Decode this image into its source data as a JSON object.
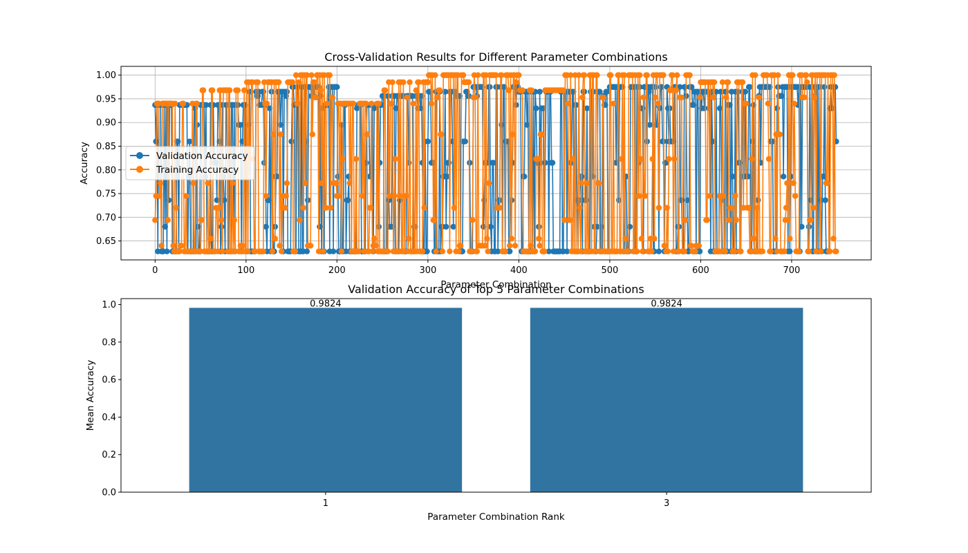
{
  "chart_data": [
    {
      "type": "line",
      "title": "Cross-Validation Results for Different Parameter Combinations",
      "xlabel": "Parameter Combination",
      "ylabel": "Accuracy",
      "xlim": [
        -37.5,
        787.5
      ],
      "ylim": [
        0.61,
        1.0185
      ],
      "xticks": [
        0,
        100,
        200,
        300,
        400,
        500,
        600,
        700
      ],
      "yticks": [
        0.65,
        0.7,
        0.75,
        0.8,
        0.85,
        0.9,
        0.95,
        1.0
      ],
      "grid": true,
      "legend_position": "center-left",
      "n_points": 750,
      "series": [
        {
          "name": "Validation Accuracy",
          "color": "#1f77b4",
          "marker": "circle",
          "levels": [
            0.628,
            0.68,
            0.736,
            0.786,
            0.815,
            0.86,
            0.895,
            0.93,
            0.937,
            0.956,
            0.965,
            0.975
          ],
          "block_ranges": [
            [
              0.628,
              0.94
            ],
            [
              0.628,
              0.955
            ],
            [
              0.628,
              0.968
            ],
            [
              0.628,
              0.975
            ],
            [
              0.628,
              0.942
            ],
            [
              0.628,
              0.96
            ],
            [
              0.628,
              0.972
            ],
            [
              0.628,
              0.975
            ],
            [
              0.628,
              0.965
            ],
            [
              0.628,
              0.972
            ],
            [
              0.628,
              0.975
            ],
            [
              0.628,
              0.975
            ],
            [
              0.628,
              0.968
            ],
            [
              0.628,
              0.975
            ],
            [
              0.628,
              0.975
            ]
          ]
        },
        {
          "name": "Training Accuracy",
          "color": "#ff7f0e",
          "marker": "circle",
          "levels": [
            0.628,
            0.64,
            0.655,
            0.694,
            0.72,
            0.745,
            0.772,
            0.823,
            0.875,
            0.94,
            0.953,
            0.968,
            0.985,
            1.0
          ],
          "block_ranges": [
            [
              0.628,
              0.94
            ],
            [
              0.628,
              0.976
            ],
            [
              0.628,
              0.99
            ],
            [
              0.628,
              1.0
            ],
            [
              0.628,
              0.945
            ],
            [
              0.628,
              0.99
            ],
            [
              0.628,
              1.0
            ],
            [
              0.628,
              1.0
            ],
            [
              0.628,
              0.975
            ],
            [
              0.628,
              1.0
            ],
            [
              0.628,
              1.0
            ],
            [
              0.628,
              1.0
            ],
            [
              0.628,
              0.985
            ],
            [
              0.628,
              1.0
            ],
            [
              0.628,
              1.0
            ]
          ]
        }
      ]
    },
    {
      "type": "bar",
      "title": "Validation Accuracy of Top 5 Parameter Combinations",
      "xlabel": "Parameter Combination Rank",
      "ylabel": "Mean Accuracy",
      "categories": [
        "1",
        "3"
      ],
      "values": [
        0.9824,
        0.9824
      ],
      "value_labels": [
        "0.9824",
        "0.9824"
      ],
      "ylim": [
        0,
        1.0315
      ],
      "yticks": [
        0.0,
        0.2,
        0.4,
        0.6,
        0.8,
        1.0
      ],
      "grid": false,
      "color": "#3274a1"
    }
  ]
}
